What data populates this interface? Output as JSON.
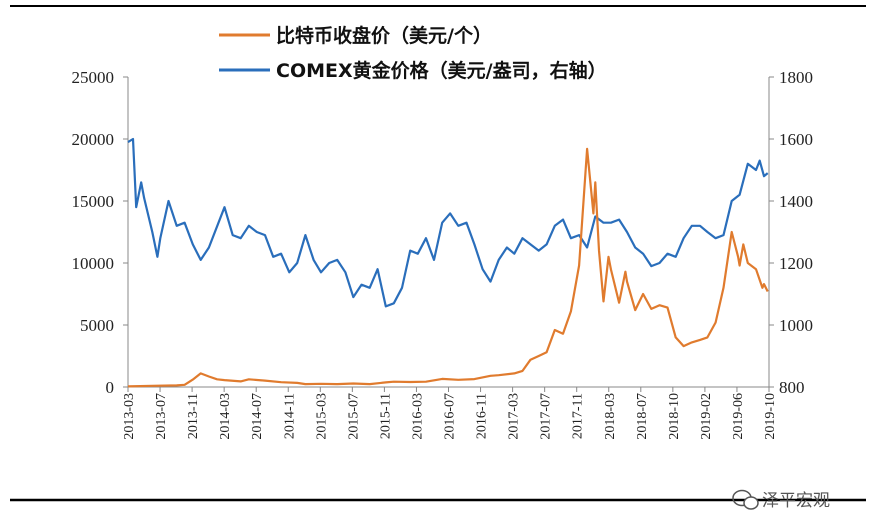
{
  "chart_data": {
    "type": "line",
    "title": "",
    "xlabel": "",
    "ylabel": "",
    "x_ticks": [
      "2013-03",
      "2013-07",
      "2013-11",
      "2014-03",
      "2014-07",
      "2014-11",
      "2015-03",
      "2015-07",
      "2015-11",
      "2016-03",
      "2016-07",
      "2016-11",
      "2017-03",
      "2017-07",
      "2017-11",
      "2018-03",
      "2018-07",
      "2018-10",
      "2019-02",
      "2019-06",
      "2019-10"
    ],
    "y_left_ticks": [
      "0",
      "5000",
      "10000",
      "15000",
      "20000",
      "25000"
    ],
    "y_right_ticks": [
      "800",
      "1000",
      "1200",
      "1400",
      "1600",
      "1800"
    ],
    "ylim_left": [
      0,
      25000
    ],
    "ylim_right": [
      800,
      1800
    ],
    "legend_position": "top",
    "grid": false,
    "series": [
      {
        "name": "比特币收盘价（美元/个）",
        "axis": "left",
        "color": "#E07B2E",
        "points": [
          [
            "2013-03",
            50
          ],
          [
            "2013-06",
            100
          ],
          [
            "2013-09",
            130
          ],
          [
            "2013-10",
            180
          ],
          [
            "2013-11",
            600
          ],
          [
            "2013-12",
            1100
          ],
          [
            "2014-01",
            850
          ],
          [
            "2014-02",
            620
          ],
          [
            "2014-03",
            560
          ],
          [
            "2014-05",
            450
          ],
          [
            "2014-06",
            620
          ],
          [
            "2014-08",
            520
          ],
          [
            "2014-10",
            390
          ],
          [
            "2014-12",
            330
          ],
          [
            "2015-01",
            230
          ],
          [
            "2015-03",
            260
          ],
          [
            "2015-05",
            235
          ],
          [
            "2015-07",
            280
          ],
          [
            "2015-09",
            235
          ],
          [
            "2015-11",
            370
          ],
          [
            "2015-12",
            430
          ],
          [
            "2016-02",
            400
          ],
          [
            "2016-04",
            430
          ],
          [
            "2016-06",
            650
          ],
          [
            "2016-08",
            580
          ],
          [
            "2016-10",
            640
          ],
          [
            "2016-12",
            900
          ],
          [
            "2017-01",
            950
          ],
          [
            "2017-03",
            1100
          ],
          [
            "2017-04",
            1300
          ],
          [
            "2017-05",
            2200
          ],
          [
            "2017-06",
            2500
          ],
          [
            "2017-07",
            2800
          ],
          [
            "2017-08",
            4600
          ],
          [
            "2017-09",
            4300
          ],
          [
            "2017-10",
            6100
          ],
          [
            "2017-11",
            9800
          ],
          [
            "2017-12",
            19200
          ],
          [
            "2017-12-25",
            14000
          ],
          [
            "2018-01",
            16500
          ],
          [
            "2018-01-15",
            11000
          ],
          [
            "2018-02",
            6900
          ],
          [
            "2018-02-20",
            10500
          ],
          [
            "2018-03",
            9500
          ],
          [
            "2018-04",
            6800
          ],
          [
            "2018-04-25",
            9300
          ],
          [
            "2018-05",
            8500
          ],
          [
            "2018-06",
            6200
          ],
          [
            "2018-07",
            7500
          ],
          [
            "2018-08",
            6300
          ],
          [
            "2018-09",
            6600
          ],
          [
            "2018-10",
            6400
          ],
          [
            "2018-11",
            4000
          ],
          [
            "2018-12",
            3300
          ],
          [
            "2019-01",
            3600
          ],
          [
            "2019-02",
            3800
          ],
          [
            "2019-03",
            4000
          ],
          [
            "2019-04",
            5200
          ],
          [
            "2019-05",
            8000
          ],
          [
            "2019-06",
            12500
          ],
          [
            "2019-06-25",
            10500
          ],
          [
            "2019-07",
            9800
          ],
          [
            "2019-07-15",
            11500
          ],
          [
            "2019-08",
            10000
          ],
          [
            "2019-09",
            9500
          ],
          [
            "2019-09-25",
            8000
          ],
          [
            "2019-10",
            8300
          ],
          [
            "2019-10-15",
            7700
          ]
        ]
      },
      {
        "name": "COMEX黄金价格（美元/盎司，右轴）",
        "axis": "right",
        "color": "#2A6EBB",
        "points": [
          [
            "2013-03",
            1590
          ],
          [
            "2013-03-20",
            1600
          ],
          [
            "2013-04",
            1380
          ],
          [
            "2013-04-20",
            1460
          ],
          [
            "2013-05",
            1410
          ],
          [
            "2013-06",
            1300
          ],
          [
            "2013-06-20",
            1220
          ],
          [
            "2013-07",
            1280
          ],
          [
            "2013-08",
            1400
          ],
          [
            "2013-09",
            1320
          ],
          [
            "2013-10",
            1330
          ],
          [
            "2013-11",
            1260
          ],
          [
            "2013-12",
            1210
          ],
          [
            "2014-01",
            1250
          ],
          [
            "2014-03",
            1380
          ],
          [
            "2014-04",
            1290
          ],
          [
            "2014-05",
            1280
          ],
          [
            "2014-06",
            1320
          ],
          [
            "2014-07",
            1300
          ],
          [
            "2014-08",
            1290
          ],
          [
            "2014-09",
            1220
          ],
          [
            "2014-10",
            1230
          ],
          [
            "2014-11",
            1170
          ],
          [
            "2014-12",
            1200
          ],
          [
            "2015-01",
            1290
          ],
          [
            "2015-02",
            1210
          ],
          [
            "2015-03",
            1170
          ],
          [
            "2015-04",
            1200
          ],
          [
            "2015-05",
            1210
          ],
          [
            "2015-06",
            1170
          ],
          [
            "2015-07",
            1090
          ],
          [
            "2015-08",
            1130
          ],
          [
            "2015-09",
            1120
          ],
          [
            "2015-10",
            1180
          ],
          [
            "2015-11",
            1060
          ],
          [
            "2015-12",
            1070
          ],
          [
            "2016-01",
            1120
          ],
          [
            "2016-02",
            1240
          ],
          [
            "2016-03",
            1230
          ],
          [
            "2016-04",
            1280
          ],
          [
            "2016-05",
            1210
          ],
          [
            "2016-06",
            1330
          ],
          [
            "2016-07",
            1360
          ],
          [
            "2016-08",
            1320
          ],
          [
            "2016-09",
            1330
          ],
          [
            "2016-10",
            1260
          ],
          [
            "2016-11",
            1180
          ],
          [
            "2016-12",
            1140
          ],
          [
            "2017-01",
            1210
          ],
          [
            "2017-02",
            1250
          ],
          [
            "2017-03",
            1230
          ],
          [
            "2017-04",
            1280
          ],
          [
            "2017-05",
            1260
          ],
          [
            "2017-06",
            1240
          ],
          [
            "2017-07",
            1260
          ],
          [
            "2017-08",
            1320
          ],
          [
            "2017-09",
            1340
          ],
          [
            "2017-10",
            1280
          ],
          [
            "2017-11",
            1290
          ],
          [
            "2017-12",
            1250
          ],
          [
            "2018-01",
            1350
          ],
          [
            "2018-02",
            1330
          ],
          [
            "2018-03",
            1330
          ],
          [
            "2018-04",
            1340
          ],
          [
            "2018-05",
            1300
          ],
          [
            "2018-06",
            1250
          ],
          [
            "2018-07",
            1230
          ],
          [
            "2018-08",
            1190
          ],
          [
            "2018-09",
            1200
          ],
          [
            "2018-10",
            1230
          ],
          [
            "2018-11",
            1220
          ],
          [
            "2018-12",
            1280
          ],
          [
            "2019-01",
            1320
          ],
          [
            "2019-02",
            1320
          ],
          [
            "2019-03",
            1300
          ],
          [
            "2019-04",
            1280
          ],
          [
            "2019-05",
            1290
          ],
          [
            "2019-06",
            1400
          ],
          [
            "2019-07",
            1420
          ],
          [
            "2019-08",
            1520
          ],
          [
            "2019-09",
            1500
          ],
          [
            "2019-09-15",
            1530
          ],
          [
            "2019-10",
            1480
          ],
          [
            "2019-10-15",
            1490
          ]
        ]
      }
    ]
  },
  "watermark": {
    "text": "泽平宏观",
    "icon": "wechat-icon"
  }
}
